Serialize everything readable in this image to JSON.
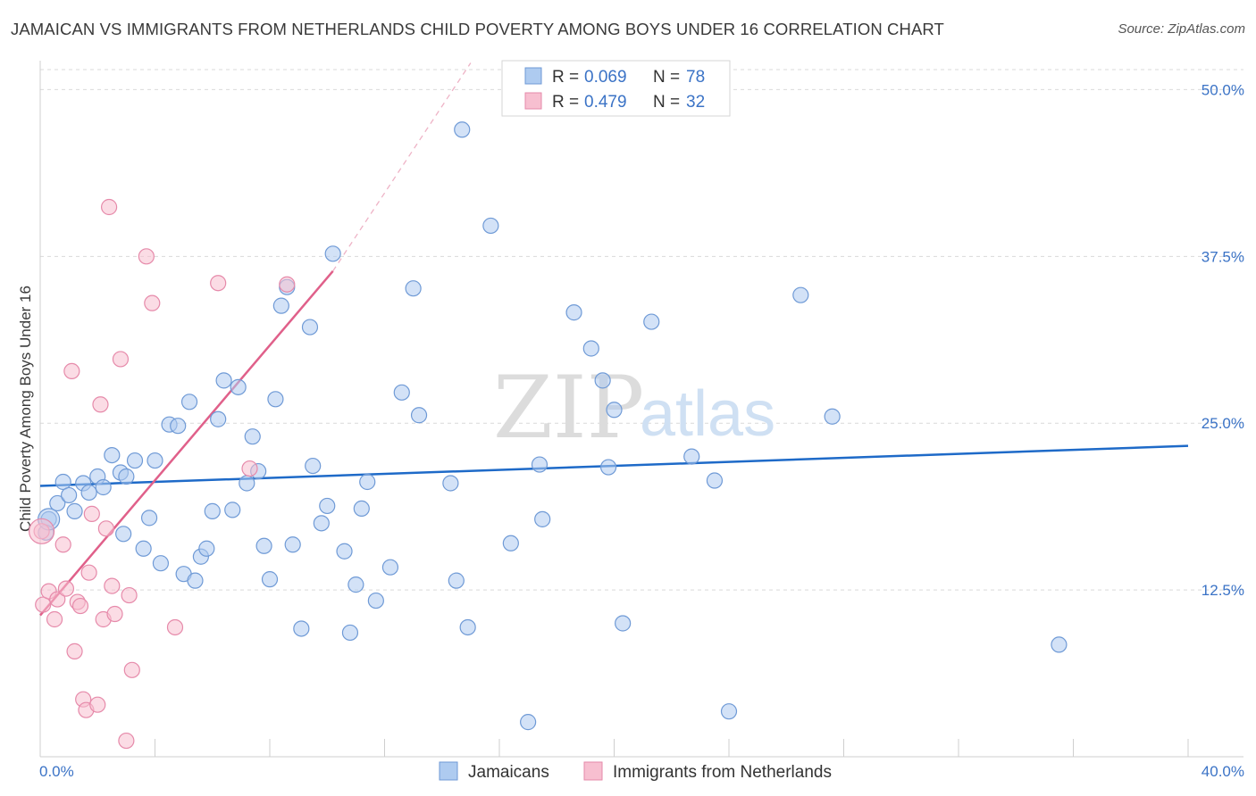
{
  "title": "JAMAICAN VS IMMIGRANTS FROM NETHERLANDS CHILD POVERTY AMONG BOYS UNDER 16 CORRELATION CHART",
  "source": "Source: ZipAtlas.com",
  "watermark": {
    "zip": "ZIP",
    "atlas": "atlas"
  },
  "colors": {
    "blue_fill": "#aecbf0",
    "blue_stroke": "#6f9ad6",
    "blue_line": "#1e6ac8",
    "pink_fill": "#f7bfd0",
    "pink_stroke": "#e68aaa",
    "pink_line": "#e0608a",
    "tick_text": "#3b73c6",
    "grid": "#d9d9d9"
  },
  "legend": {
    "rows": [
      {
        "r_label": "R =",
        "r_value": "0.069",
        "n_label": "N =",
        "n_value": "78"
      },
      {
        "r_label": "R =",
        "r_value": "0.479",
        "n_label": "N =",
        "n_value": "32"
      }
    ]
  },
  "chart_data": {
    "type": "scatter",
    "title": "JAMAICAN VS IMMIGRANTS FROM NETHERLANDS CHILD POVERTY AMONG BOYS UNDER 16 CORRELATION CHART",
    "xlabel": "",
    "ylabel": "Child Poverty Among Boys Under 16",
    "xlim": [
      0,
      40
    ],
    "ylim": [
      0,
      51.5
    ],
    "x_tick_labels": [
      "0.0%",
      "40.0%"
    ],
    "y_ticks": [
      12.5,
      25.0,
      37.5,
      50.0
    ],
    "y_tick_labels": [
      "12.5%",
      "25.0%",
      "37.5%",
      "50.0%"
    ],
    "grid": true,
    "legend_position": "top-center",
    "series": [
      {
        "name": "Jamaicans",
        "r": 0.069,
        "n": 78,
        "trend": {
          "x": [
            0,
            40
          ],
          "y": [
            20.3,
            23.3
          ],
          "dashed_extension": false
        },
        "points": [
          [
            0.3,
            17.8
          ],
          [
            0.6,
            19.0
          ],
          [
            0.8,
            20.6
          ],
          [
            1.2,
            18.4
          ],
          [
            1.5,
            20.5
          ],
          [
            1.7,
            19.8
          ],
          [
            2.0,
            21.0
          ],
          [
            2.2,
            20.2
          ],
          [
            2.5,
            22.6
          ],
          [
            2.8,
            21.3
          ],
          [
            3.0,
            21.0
          ],
          [
            3.3,
            22.2
          ],
          [
            3.6,
            15.6
          ],
          [
            3.8,
            17.9
          ],
          [
            4.0,
            22.2
          ],
          [
            4.2,
            14.5
          ],
          [
            4.5,
            24.9
          ],
          [
            4.8,
            24.8
          ],
          [
            5.0,
            13.7
          ],
          [
            5.2,
            26.6
          ],
          [
            5.4,
            13.2
          ],
          [
            5.6,
            15.0
          ],
          [
            5.8,
            15.6
          ],
          [
            6.0,
            18.4
          ],
          [
            6.2,
            25.3
          ],
          [
            6.4,
            28.2
          ],
          [
            6.7,
            18.5
          ],
          [
            6.9,
            27.7
          ],
          [
            7.2,
            20.5
          ],
          [
            7.4,
            24.0
          ],
          [
            7.6,
            21.4
          ],
          [
            7.8,
            15.8
          ],
          [
            8.0,
            13.3
          ],
          [
            8.2,
            26.8
          ],
          [
            8.4,
            33.8
          ],
          [
            8.6,
            35.2
          ],
          [
            8.8,
            15.9
          ],
          [
            9.1,
            9.6
          ],
          [
            9.4,
            32.2
          ],
          [
            9.5,
            21.8
          ],
          [
            9.8,
            17.5
          ],
          [
            10.0,
            18.8
          ],
          [
            10.2,
            37.7
          ],
          [
            10.6,
            15.4
          ],
          [
            10.8,
            9.3
          ],
          [
            11.0,
            12.9
          ],
          [
            11.2,
            18.6
          ],
          [
            11.4,
            20.6
          ],
          [
            11.7,
            11.7
          ],
          [
            12.2,
            14.2
          ],
          [
            12.6,
            27.3
          ],
          [
            13.0,
            35.1
          ],
          [
            13.2,
            25.6
          ],
          [
            14.3,
            20.5
          ],
          [
            14.5,
            13.2
          ],
          [
            14.7,
            47.0
          ],
          [
            14.9,
            9.7
          ],
          [
            15.7,
            39.8
          ],
          [
            16.4,
            16.0
          ],
          [
            17.0,
            2.6
          ],
          [
            17.4,
            21.9
          ],
          [
            17.5,
            17.8
          ],
          [
            18.6,
            33.3
          ],
          [
            19.2,
            30.6
          ],
          [
            19.6,
            28.2
          ],
          [
            19.8,
            21.7
          ],
          [
            20.0,
            26.0
          ],
          [
            20.3,
            10.0
          ],
          [
            21.3,
            32.6
          ],
          [
            22.7,
            22.5
          ],
          [
            23.5,
            20.7
          ],
          [
            24.0,
            3.4
          ],
          [
            26.5,
            34.6
          ],
          [
            27.6,
            25.5
          ],
          [
            35.5,
            8.4
          ],
          [
            0.2,
            16.8
          ],
          [
            2.9,
            16.7
          ],
          [
            1.0,
            19.6
          ]
        ]
      },
      {
        "name": "Immigrants from Netherlands",
        "r": 0.479,
        "n": 32,
        "trend": {
          "x": [
            0,
            10.2
          ],
          "y": [
            10.6,
            36.4
          ],
          "dashed_to": [
            15.0,
            52.0
          ]
        },
        "points": [
          [
            0.1,
            11.4
          ],
          [
            0.3,
            12.4
          ],
          [
            0.5,
            10.3
          ],
          [
            0.6,
            11.8
          ],
          [
            0.8,
            15.9
          ],
          [
            0.9,
            12.6
          ],
          [
            1.1,
            28.9
          ],
          [
            1.2,
            7.9
          ],
          [
            1.3,
            11.6
          ],
          [
            1.4,
            11.3
          ],
          [
            1.5,
            4.3
          ],
          [
            1.6,
            3.5
          ],
          [
            1.7,
            13.8
          ],
          [
            1.8,
            18.2
          ],
          [
            2.0,
            3.9
          ],
          [
            2.1,
            26.4
          ],
          [
            2.2,
            10.3
          ],
          [
            2.3,
            17.1
          ],
          [
            2.4,
            41.2
          ],
          [
            2.5,
            12.8
          ],
          [
            2.6,
            10.7
          ],
          [
            2.8,
            29.8
          ],
          [
            3.0,
            1.2
          ],
          [
            3.1,
            12.1
          ],
          [
            3.2,
            6.5
          ],
          [
            3.7,
            37.5
          ],
          [
            3.9,
            34.0
          ],
          [
            4.7,
            9.7
          ],
          [
            6.2,
            35.5
          ],
          [
            7.3,
            21.6
          ],
          [
            8.6,
            35.4
          ],
          [
            0.05,
            16.9
          ]
        ]
      }
    ]
  },
  "bottom_legend": {
    "items": [
      "Jamaicans",
      "Immigrants from Netherlands"
    ]
  }
}
